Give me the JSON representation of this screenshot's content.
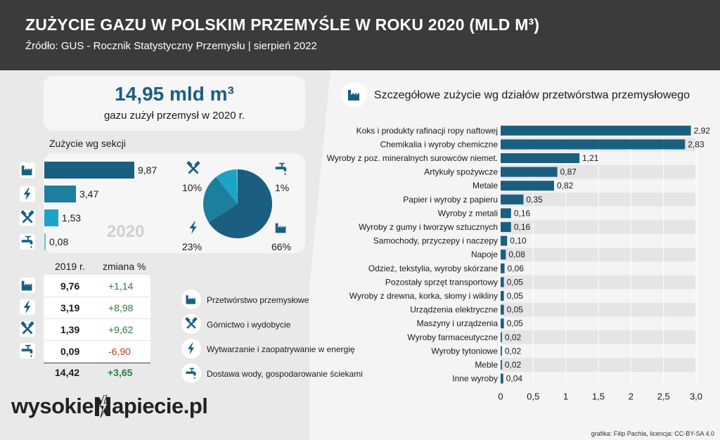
{
  "header": {
    "title": "ZUŻYCIE GAZU W POLSKIM PRZEMYŚLE W ROKU 2020 (MLD M³)",
    "subtitle": "Źródło:  GUS - Rocznik Statystyczny Przemysłu | sierpień 2022"
  },
  "total": {
    "value": "14,95  mld m³",
    "caption": "gazu zużył przemysł w 2020 r."
  },
  "sections": {
    "title": "Zużycie wg sekcji",
    "year": "2020",
    "items": [
      {
        "icon": "factory-icon",
        "name": "Przetwórstwo przemysłowe",
        "value": 9.87,
        "label": "9,87",
        "share": "66%",
        "color": "#1a5f80"
      },
      {
        "icon": "lightning-icon",
        "name": "Wytwarzanie i zaopatrywanie w energię",
        "value": 3.47,
        "label": "3,47",
        "share": "23%",
        "color": "#1d7f9e"
      },
      {
        "icon": "hammers-icon",
        "name": "Górnictwo i wydobycie",
        "value": 1.53,
        "label": "1,53",
        "share": "10%",
        "color": "#1ca3c7"
      },
      {
        "icon": "tap-icon",
        "name": "Dostawa wody, gospodarowanie ściekami",
        "value": 0.08,
        "label": "0,08",
        "share": "1%",
        "color": "#5fc3e0"
      }
    ]
  },
  "table": {
    "col_2019": "2019 r.",
    "col_change": "zmiana %",
    "rows": [
      {
        "icon": "factory-icon",
        "v2019": "9,76",
        "change": "+1,14",
        "positive": true
      },
      {
        "icon": "lightning-icon",
        "v2019": "3,19",
        "change": "+8,98",
        "positive": true
      },
      {
        "icon": "hammers-icon",
        "v2019": "1,39",
        "change": "+9,62",
        "positive": true
      },
      {
        "icon": "tap-icon",
        "v2019": "0,09",
        "change": "-6,90",
        "positive": false
      }
    ],
    "total_2019": "14,42",
    "total_change": "+3,65"
  },
  "legend": [
    {
      "icon": "factory-icon",
      "label": "Przetwórstwo przemysłowe"
    },
    {
      "icon": "hammers-icon",
      "label": "Górnictwo i wydobycie"
    },
    {
      "icon": "lightning-icon",
      "label": "Wytwarzanie i zaopatrywanie w energię"
    },
    {
      "icon": "tap-icon",
      "label": "Dostawa wody, gospodarowanie ściekami"
    }
  ],
  "chart_title": "Szczegółowe zużycie wg działów przetwórstwa przemysłowego",
  "chart_data": {
    "type": "bar",
    "orientation": "horizontal",
    "categories": [
      "Koks i produkty rafinacji ropy naftowej",
      "Chemikalia i wyroby chemiczne",
      "Wyroby z poz. mineralnych surowców niemet.",
      "Artykuły spożywcze",
      "Metale",
      "Papier i wyroby z papieru",
      "Wyroby z metali",
      "Wyroby z gumy i tworzyw sztucznych",
      "Samochody, przyczepy i naczepy",
      "Napoje",
      "Odzież, tekstylia, wyroby skórzane",
      "Pozostały sprzęt transportowy",
      "Wyroby z drewna, korka, słomy i wikliny",
      "Urządzenia elektryczne",
      "Maszyny i urządzenia",
      "Wyroby farmaceutyczne",
      "Wyroby tytoniowe",
      "Meble",
      "Inne wyroby"
    ],
    "values": [
      2.92,
      2.83,
      1.21,
      0.87,
      0.82,
      0.35,
      0.16,
      0.16,
      0.1,
      0.08,
      0.06,
      0.05,
      0.05,
      0.05,
      0.05,
      0.02,
      0.02,
      0.02,
      0.04
    ],
    "value_labels": [
      "2,92",
      "2,83",
      "1,21",
      "0,87",
      "0,82",
      "0,35",
      "0,16",
      "0,16",
      "0,10",
      "0,08",
      "0,06",
      "0,05",
      "0,05",
      "0,05",
      "0,05",
      "0,02",
      "0,02",
      "0,02",
      "0,04"
    ],
    "xlim": [
      0,
      3
    ],
    "xticks": [
      0,
      0.5,
      1,
      1.5,
      2,
      2.5,
      3
    ],
    "xtick_labels": [
      "0",
      "0,5",
      "1",
      "1,5",
      "2",
      "2,5",
      "3,0"
    ],
    "bar_color": "#1a5f80"
  },
  "logo": {
    "left": "wysokie",
    "right": "apiecie.pl"
  },
  "credit": "grafika: Filip Pachla, licencja: CC-BY-SA 4.0"
}
